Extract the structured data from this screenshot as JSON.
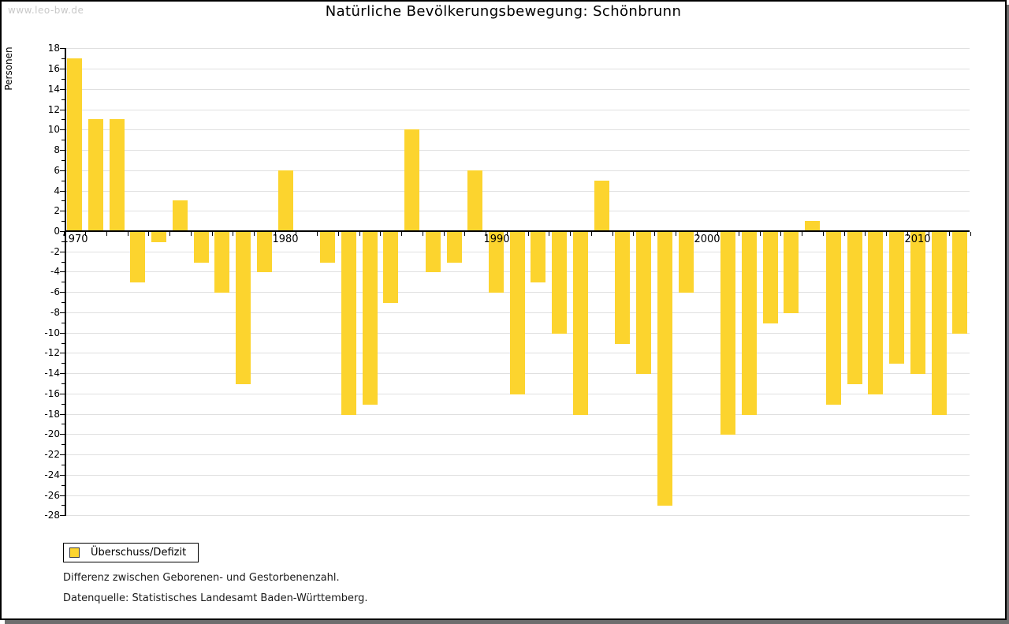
{
  "page": {
    "watermark": "www.leo-bw.de"
  },
  "chart_data": {
    "type": "bar",
    "title": "Natürliche Bevölkerungsbewegung: Schönbrunn",
    "ylabel": "Personen",
    "series_name": "Überschuss/Defizit",
    "ylim": [
      -28,
      18
    ],
    "ytick_step": 2,
    "grid": "horizontal",
    "legend_position": "bottom-left",
    "bar_color": "#FCD42E",
    "categories": [
      1970,
      1971,
      1972,
      1973,
      1974,
      1975,
      1976,
      1977,
      1978,
      1979,
      1980,
      1981,
      1982,
      1983,
      1984,
      1985,
      1986,
      1987,
      1988,
      1989,
      1990,
      1991,
      1992,
      1993,
      1994,
      1995,
      1996,
      1997,
      1998,
      1999,
      2000,
      2001,
      2002,
      2003,
      2004,
      2005,
      2006,
      2007,
      2008,
      2009,
      2010,
      2011,
      2012
    ],
    "values": [
      17,
      11,
      11,
      -5,
      -1,
      3,
      -3,
      -6,
      -15,
      -4,
      6,
      0,
      -3,
      -18,
      -17,
      -7,
      10,
      -4,
      -3,
      6,
      -6,
      -16,
      -5,
      -10,
      -18,
      5,
      -11,
      -14,
      -27,
      -6,
      0,
      -20,
      -18,
      -9,
      -8,
      1,
      -17,
      -15,
      -16,
      -13,
      -14,
      -18,
      -10
    ],
    "x_tick_labels": [
      "1970",
      "1980",
      "1990",
      "2000",
      "2010"
    ]
  },
  "legend": {
    "label": "Überschuss/Defizit",
    "swatch_color": "#FCD42E"
  },
  "footer": {
    "line1": "Differenz zwischen Geborenen- und Gestorbenenzahl.",
    "line2": "Datenquelle: Statistisches Landesamt Baden-Württemberg."
  }
}
